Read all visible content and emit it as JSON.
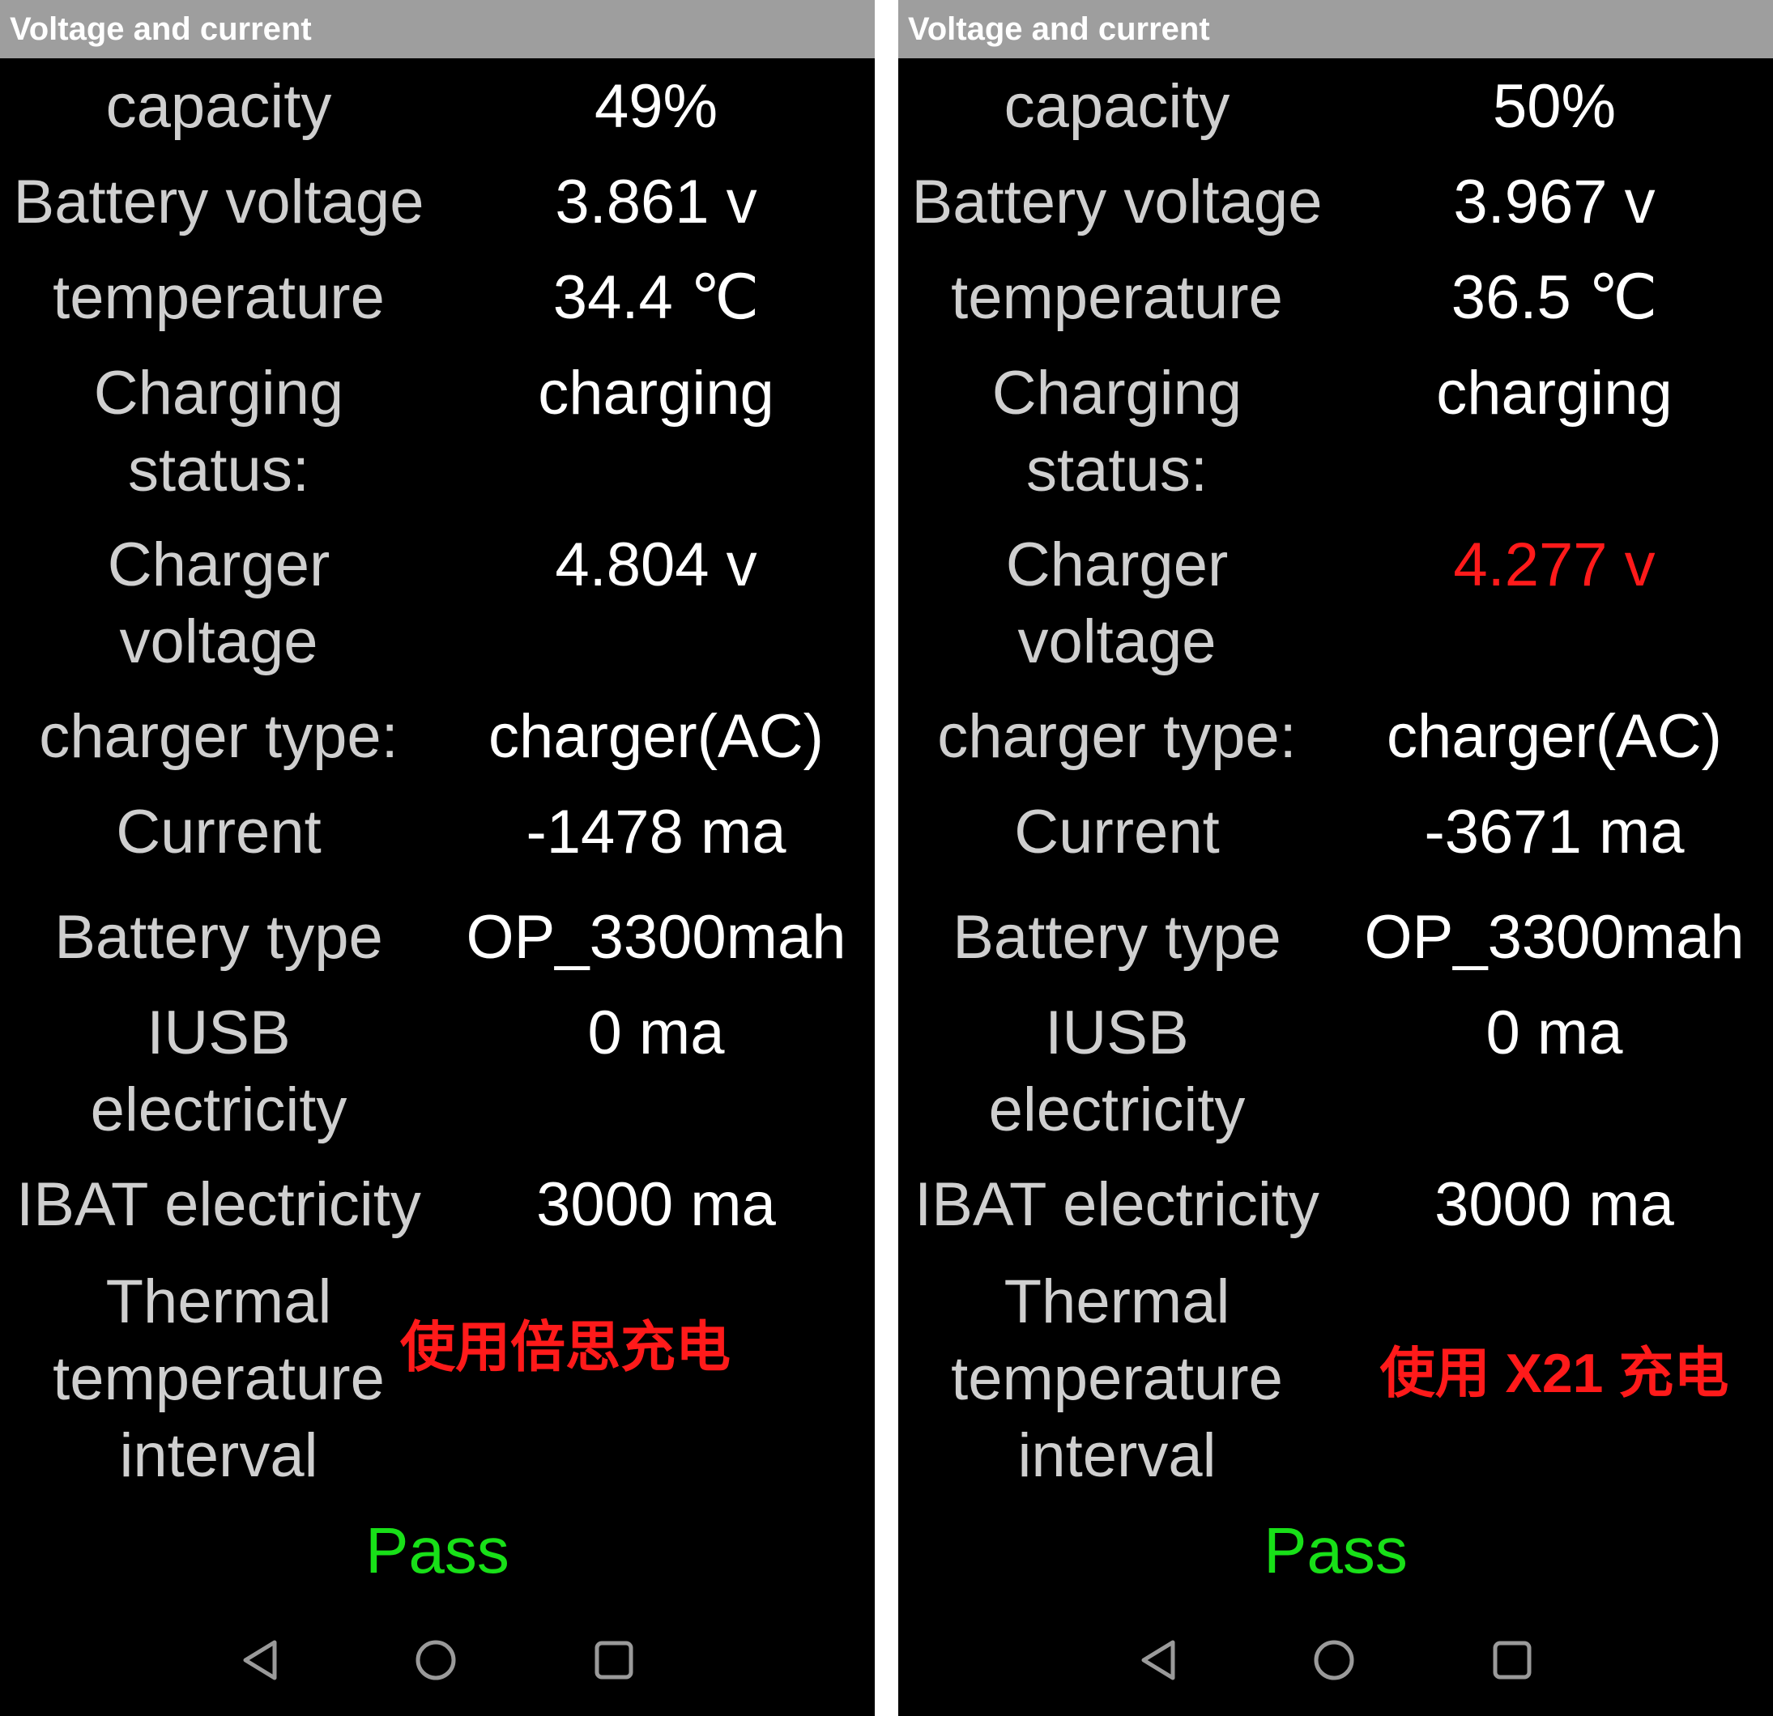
{
  "screens": [
    {
      "title": "Voltage and current",
      "rows": {
        "capacity": {
          "label": "capacity",
          "value": "49%"
        },
        "battery_voltage": {
          "label": "Battery voltage",
          "value": "3.861 v"
        },
        "temperature": {
          "label": "temperature",
          "value": "34.4 ℃"
        },
        "charging_status": {
          "label_line1": "Charging",
          "label_line2": "status:",
          "value": "charging"
        },
        "charger_voltage": {
          "label_line1": "Charger",
          "label_line2": "voltage",
          "value": "4.804 v"
        },
        "charger_type": {
          "label": "charger type:",
          "value": "charger(AC)"
        },
        "current": {
          "label": "Current",
          "value": "-1478 ma"
        },
        "battery_type": {
          "label": "Battery type",
          "value": "OP_3300mah"
        },
        "iusb": {
          "label_line1": "IUSB",
          "label_line2": "electricity",
          "value": "0 ma"
        },
        "ibat": {
          "label": "IBAT electricity",
          "value": "3000 ma"
        },
        "thermal": {
          "label_line1": "Thermal",
          "label_line2": "temperature",
          "label_line3": "interval"
        }
      },
      "note": "使用倍思充电",
      "result": "Pass",
      "nav": {
        "back_icon": "triangle-back-icon",
        "home_icon": "circle-home-icon",
        "recent_icon": "square-recent-icon"
      }
    },
    {
      "title": "Voltage and current",
      "rows": {
        "capacity": {
          "label": "capacity",
          "value": "50%"
        },
        "battery_voltage": {
          "label": "Battery voltage",
          "value": "3.967 v"
        },
        "temperature": {
          "label": "temperature",
          "value": "36.5 ℃"
        },
        "charging_status": {
          "label_line1": "Charging",
          "label_line2": "status:",
          "value": "charging"
        },
        "charger_voltage": {
          "label_line1": "Charger",
          "label_line2": "voltage",
          "value": "4.277 v"
        },
        "charger_type": {
          "label": "charger type:",
          "value": "charger(AC)"
        },
        "current": {
          "label": "Current",
          "value": "-3671 ma"
        },
        "battery_type": {
          "label": "Battery type",
          "value": "OP_3300mah"
        },
        "iusb": {
          "label_line1": "IUSB",
          "label_line2": "electricity",
          "value": "0 ma"
        },
        "ibat": {
          "label": "IBAT electricity",
          "value": "3000 ma"
        },
        "thermal": {
          "label_line1": "Thermal",
          "label_line2": "temperature",
          "label_line3": "interval"
        }
      },
      "note": "使用 X21 充电",
      "result": "Pass",
      "nav": {
        "back_icon": "triangle-back-icon",
        "home_icon": "circle-home-icon",
        "recent_icon": "square-recent-icon"
      }
    }
  ],
  "colors": {
    "titlebar_bg": "#9e9e9e",
    "background": "#000000",
    "label_text": "#cfcfcf",
    "value_text": "#ffffff",
    "warning_red": "#ff1a1a",
    "pass_green": "#18e018"
  }
}
